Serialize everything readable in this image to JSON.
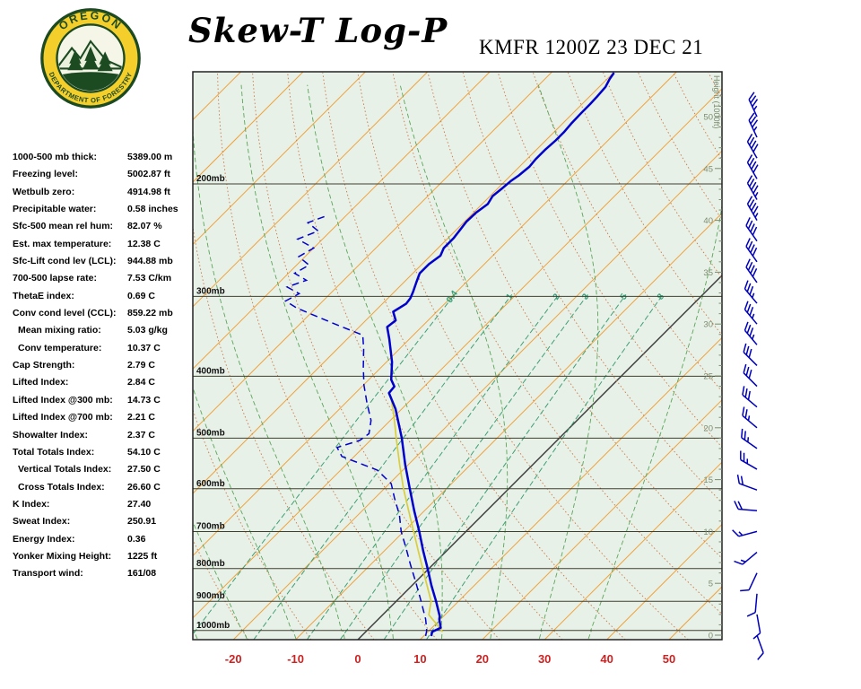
{
  "header": {
    "title": "Skew-T Log-P",
    "station": "KMFR 1200Z 23 DEC 21",
    "logo": {
      "top_text": "OREGON",
      "bottom_text": "DEPARTMENT OF FORESTRY"
    }
  },
  "stats": {
    "items": [
      {
        "label": "1000-500 mb thick:",
        "value": "5389.00 m"
      },
      {
        "label": "Freezing level:",
        "value": "5002.87 ft"
      },
      {
        "label": "Wetbulb zero:",
        "value": "4914.98 ft"
      },
      {
        "label": "Precipitable water:",
        "value": "0.58 inches"
      },
      {
        "label": "Sfc-500 mean rel hum:",
        "value": "82.07 %"
      },
      {
        "label": "Est. max temperature:",
        "value": "12.38 C"
      },
      {
        "label": "Sfc-Lift cond lev (LCL):",
        "value": "944.88 mb"
      },
      {
        "label": "700-500 lapse rate:",
        "value": "7.53 C/km"
      },
      {
        "label": "ThetaE index:",
        "value": "0.69 C"
      },
      {
        "label": "Conv cond level (CCL):",
        "value": "859.22 mb"
      },
      {
        "label": "Mean mixing ratio:",
        "value": "5.03 g/kg",
        "indent": true
      },
      {
        "label": "Conv temperature:",
        "value": "10.37 C",
        "indent": true
      },
      {
        "label": "Cap Strength:",
        "value": "2.79 C"
      },
      {
        "label": "Lifted Index:",
        "value": "2.84 C"
      },
      {
        "label": "Lifted Index @300 mb:",
        "value": "14.73 C"
      },
      {
        "label": "Lifted Index @700 mb:",
        "value": "2.21 C"
      },
      {
        "label": "Showalter Index:",
        "value": "2.37 C"
      },
      {
        "label": "Total Totals Index:",
        "value": "54.10 C"
      },
      {
        "label": "Vertical Totals Index:",
        "value": "27.50 C",
        "indent": true
      },
      {
        "label": "Cross Totals Index:",
        "value": "26.60 C",
        "indent": true
      },
      {
        "label": "K Index:",
        "value": "27.40"
      },
      {
        "label": "Sweat Index:",
        "value": "250.91"
      },
      {
        "label": "Energy Index:",
        "value": "0.36"
      },
      {
        "label": "Yonker Mixing Height:",
        "value": "1225 ft"
      },
      {
        "label": "Transport wind:",
        "value": "161/08"
      }
    ]
  },
  "chart_data": {
    "type": "skew-t-log-p",
    "pressure_levels_mb": [
      200,
      300,
      400,
      500,
      600,
      700,
      800,
      900,
      1000
    ],
    "pressure_label_suffix": "mb",
    "temp_ticks_c": [
      -20,
      -10,
      0,
      10,
      20,
      30,
      40,
      50
    ],
    "height_axis": {
      "title": "Height (1000ft)",
      "ticks_kft": [
        0,
        5,
        10,
        15,
        20,
        25,
        30,
        35,
        40,
        45,
        50
      ]
    },
    "isotherms_c": {
      "min": -120,
      "max": 60,
      "step": 10
    },
    "dry_adiabats_c": [
      -40,
      -30,
      -20,
      -10,
      0,
      10,
      20,
      30,
      40,
      50,
      60,
      70,
      80,
      90,
      100,
      110,
      120,
      130,
      140,
      150,
      160
    ],
    "moist_adiabats_c": [
      -44,
      -36,
      -28,
      -20,
      -12,
      -4,
      4,
      12,
      20,
      28,
      36
    ],
    "mixing_ratio_lines_gkg": [
      0.4,
      1,
      2,
      3,
      5,
      8
    ],
    "mixing_label_pressure_mb": 302,
    "sounding_format": "[pressure_mb, temp_c]",
    "sounding": {
      "temperature": [
        [
          1020,
          11.2
        ],
        [
          1005,
          10.7
        ],
        [
          990,
          11.4
        ],
        [
          960,
          9.8
        ],
        [
          950,
          9.4
        ],
        [
          900,
          6.4
        ],
        [
          850,
          3.1
        ],
        [
          800,
          -0.2
        ],
        [
          750,
          -3.8
        ],
        [
          700,
          -7.5
        ],
        [
          650,
          -11.6
        ],
        [
          600,
          -15.9
        ],
        [
          550,
          -20.5
        ],
        [
          500,
          -25.3
        ],
        [
          450,
          -31.0
        ],
        [
          425,
          -34.6
        ],
        [
          415,
          -34.8
        ],
        [
          405,
          -36.4
        ],
        [
          380,
          -39.1
        ],
        [
          350,
          -43.2
        ],
        [
          335,
          -45.5
        ],
        [
          327,
          -45.2
        ],
        [
          317,
          -47.0
        ],
        [
          308,
          -46.2
        ],
        [
          302,
          -46.4
        ],
        [
          295,
          -47.0
        ],
        [
          285,
          -48.0
        ],
        [
          276,
          -48.9
        ],
        [
          267,
          -48.9
        ],
        [
          259,
          -48.4
        ],
        [
          252,
          -49.1
        ],
        [
          243,
          -49.1
        ],
        [
          236,
          -49.4
        ],
        [
          229,
          -49.7
        ],
        [
          222,
          -49.6
        ],
        [
          215,
          -49.1
        ],
        [
          209,
          -49.6
        ],
        [
          203,
          -49.3
        ],
        [
          198,
          -49.1
        ],
        [
          194,
          -48.7
        ],
        [
          188,
          -48.4
        ],
        [
          183,
          -48.6
        ],
        [
          177,
          -48.6
        ],
        [
          171,
          -48.4
        ],
        [
          166,
          -48.4
        ],
        [
          161,
          -48.6
        ],
        [
          155,
          -48.7
        ],
        [
          150,
          -48.7
        ],
        [
          146,
          -48.8
        ],
        [
          141,
          -49.0
        ],
        [
          137,
          -49.6
        ],
        [
          134,
          -49.9
        ]
      ],
      "dewpoint": [
        [
          1020,
          10.3
        ],
        [
          1000,
          9.6
        ],
        [
          960,
          7.6
        ],
        [
          900,
          4.0
        ],
        [
          845,
          0.4
        ],
        [
          790,
          -3.5
        ],
        [
          740,
          -7.2
        ],
        [
          700,
          -10.4
        ],
        [
          660,
          -13.3
        ],
        [
          620,
          -16.9
        ],
        [
          589,
          -19.7
        ],
        [
          561,
          -24.1
        ],
        [
          534,
          -32.0
        ],
        [
          517,
          -34.2
        ],
        [
          504,
          -31.7
        ],
        [
          492,
          -31.3
        ],
        [
          469,
          -33.1
        ],
        [
          440,
          -36.6
        ],
        [
          413,
          -39.9
        ],
        [
          387,
          -42.9
        ],
        [
          363,
          -45.7
        ],
        [
          345,
          -48.1
        ],
        [
          330,
          -55.0
        ],
        [
          313,
          -63.0
        ],
        [
          305,
          -66.0
        ],
        [
          297,
          -65.0
        ],
        [
          290,
          -68.0
        ],
        [
          283,
          -66.0
        ],
        [
          276,
          -69.0
        ],
        [
          268,
          -68.0
        ],
        [
          260,
          -71.0
        ],
        [
          252,
          -70.0
        ],
        [
          244,
          -74.0
        ],
        [
          237,
          -72.0
        ],
        [
          230,
          -75.0
        ],
        [
          224,
          -73.0
        ]
      ]
    },
    "parcel_trace": [
      [
        1005,
        12.38
      ],
      [
        985,
        10.8
      ],
      [
        945,
        7.41
      ],
      [
        900,
        5.6
      ],
      [
        850,
        2.4
      ],
      [
        800,
        -1.0
      ],
      [
        750,
        -4.6
      ],
      [
        700,
        -8.4
      ],
      [
        650,
        -12.5
      ],
      [
        600,
        -16.9
      ],
      [
        550,
        -21.4
      ],
      [
        500,
        -26.2
      ],
      [
        460,
        -30.3
      ],
      [
        430,
        -33.8
      ]
    ],
    "wind_barb_format": "[height_kft, dir_deg_from, speed_kt]",
    "wind_barbs": [
      [
        0,
        160,
        8
      ],
      [
        2,
        170,
        10
      ],
      [
        4,
        185,
        10
      ],
      [
        6,
        205,
        12
      ],
      [
        8,
        230,
        15
      ],
      [
        10,
        255,
        15
      ],
      [
        12,
        275,
        20
      ],
      [
        14,
        290,
        20
      ],
      [
        16,
        300,
        25
      ],
      [
        18,
        305,
        25
      ],
      [
        20,
        310,
        25
      ],
      [
        22,
        310,
        30
      ],
      [
        24,
        315,
        30
      ],
      [
        26,
        315,
        30
      ],
      [
        28,
        320,
        35
      ],
      [
        30,
        320,
        35
      ],
      [
        32,
        320,
        35
      ],
      [
        34,
        325,
        40
      ],
      [
        36,
        325,
        40
      ],
      [
        38,
        325,
        40
      ],
      [
        40,
        330,
        45
      ],
      [
        42,
        330,
        45
      ],
      [
        44,
        330,
        40
      ],
      [
        46,
        330,
        40
      ],
      [
        48,
        335,
        35
      ],
      [
        50,
        335,
        35
      ]
    ],
    "colors": {
      "bg": "#e8f1e8",
      "isotherm": "#efa23c",
      "zero_isotherm": "#3a3a3a",
      "dry_adiabat": "#cc7746",
      "moist_adiabat": "#5aa55a",
      "mixing_ratio": "#3f9f74",
      "mixing_label": "#2f9e78",
      "pressure_line": "#3f3f2f",
      "border": "#222222",
      "temperature": "#0000cc",
      "dewpoint": "#0000cc",
      "parcel": "#d9ce3f",
      "temp_axis_label": "#cc2222",
      "height_axis": "#7d8c6e",
      "wind_barb": "#0000bb"
    }
  }
}
